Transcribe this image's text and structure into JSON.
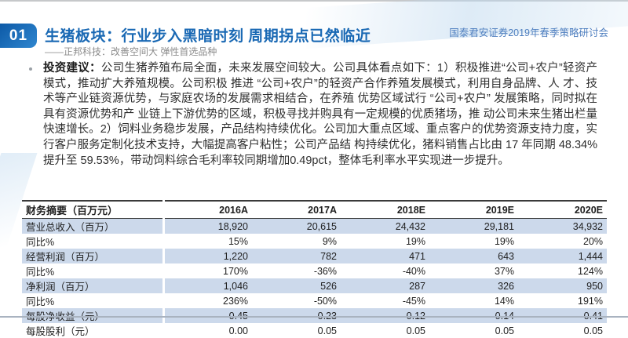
{
  "header": {
    "badge": "01",
    "title": "生猪板块：行业步入黑暗时刻  周期拐点已然临近",
    "subtitle": "——正邦科技：改善空间大  弹性首选品种",
    "conference": "国泰君安证券2019年春季策略研讨会"
  },
  "body": {
    "lead": "投资建议：",
    "text": "公司生猪养殖布局全面，未来发展空间较大。公司具体看点如下：1）积极推进“公司+农户”轻资产模式，推动扩大养殖规模。公司积极 推进 “公司+农户”的轻资产合作养殖发展模式，利用自身品牌、人 才、技术等产业链资源优势，与家庭农场的发展需求相结合，在养殖 优势区域试行 “公司+农户” 发展策略，同时拟在具有资源优势和产 业链上下游优势的区域，积极寻找并购具有一定规模的优质猪场，推 动公司未来生猪出栏量快速增长。2）饲料业务稳步发展，产品结构持续优化。公司加大重点区域、重点客户的优势资源支持力度，实行客户服务定制化技术支持，大幅提高客户粘性；公司产品结 构持续优化，猪料销售占比由 17 年同期 48.34%提升至 59.53%，带动饲料综合毛利率较同期增加0.49pct，整体毛利率水平实现进一步提升。"
  },
  "table": {
    "title": "财务摘要（百万元）",
    "columns": [
      "2016A",
      "2017A",
      "2018E",
      "2019E",
      "2020E"
    ],
    "rows": [
      {
        "label": "营业总收入（百万）",
        "values": [
          "18,920",
          "20,615",
          "24,432",
          "29,181",
          "34,932"
        ]
      },
      {
        "label": "同比%",
        "values": [
          "15%",
          "9%",
          "19%",
          "19%",
          "20%"
        ]
      },
      {
        "label": "经营利润（百万）",
        "values": [
          "1,220",
          "782",
          "471",
          "643",
          "1,444"
        ]
      },
      {
        "label": "同比%",
        "values": [
          "170%",
          "-36%",
          "-40%",
          "37%",
          "124%"
        ]
      },
      {
        "label": "净利润（百万）",
        "values": [
          "1,046",
          "526",
          "287",
          "326",
          "950"
        ]
      },
      {
        "label": "同比%",
        "values": [
          "236%",
          "-50%",
          "-45%",
          "14%",
          "191%"
        ]
      },
      {
        "label": "每股净收益（元）",
        "values": [
          "0.45",
          "0.23",
          "0.12",
          "0.14",
          "0.41"
        ]
      },
      {
        "label": "每股股利（元）",
        "values": [
          "0.00",
          "0.05",
          "0.05",
          "0.05",
          "0.05"
        ]
      }
    ]
  },
  "colors": {
    "title_blue": "#1a69b4",
    "badge_gradient_start": "#0d5aa7",
    "badge_gradient_end": "#2f86cf",
    "conference_blue": "#4d7ebf",
    "subtitle_gray": "#8c8c8c",
    "row_shade_blue": "#ccd9eb",
    "table_border_dark": "#3a3a3a"
  }
}
